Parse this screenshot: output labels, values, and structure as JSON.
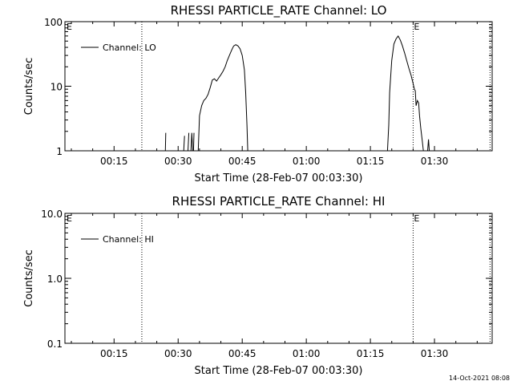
{
  "footer": {
    "timestamp": "14-Oct-2021 08:08"
  },
  "chart_data": [
    {
      "type": "line",
      "title": "RHESSI PARTICLE_RATE Channel: LO",
      "xlabel": "Start Time (28-Feb-07 00:03:30)",
      "ylabel": "Counts/sec",
      "xscale": "linear",
      "yscale": "log",
      "xunit": "minutes after 00:03:30",
      "xlim": [
        0,
        100
      ],
      "ylim": [
        1,
        100
      ],
      "xticks": [
        {
          "value": 11.5,
          "label": "00:15"
        },
        {
          "value": 26.5,
          "label": "00:30"
        },
        {
          "value": 41.5,
          "label": "00:45"
        },
        {
          "value": 56.5,
          "label": "01:00"
        },
        {
          "value": 71.5,
          "label": "01:15"
        },
        {
          "value": 86.5,
          "label": "01:30"
        }
      ],
      "yticks": [
        {
          "value": 1,
          "label": "1"
        },
        {
          "value": 10,
          "label": "10"
        },
        {
          "value": 100,
          "label": "100"
        }
      ],
      "legend": {
        "label": "Channel: LO",
        "position": "top-left"
      },
      "event_lines": [
        {
          "x": 18,
          "label": "",
          "label_x": 0
        },
        {
          "x": 81.5,
          "label": "E",
          "label_x": 81.5
        },
        {
          "x": 99.5,
          "label": "",
          "label_x": 0
        }
      ],
      "edge_markers": [
        {
          "label": "E",
          "position": "left"
        }
      ],
      "series": [
        {
          "name": "Channel: LO",
          "segments": [
            [
              [
                23.5,
                1.0
              ],
              [
                23.6,
                1.9
              ]
            ],
            [
              [
                27.8,
                1.0
              ],
              [
                28.0,
                1.7
              ]
            ],
            [
              [
                28.8,
                1.0
              ],
              [
                29.0,
                1.9
              ]
            ],
            [
              [
                29.5,
                1.0
              ],
              [
                29.7,
                1.9
              ],
              [
                29.9,
                1.0
              ]
            ],
            [
              [
                30.1,
                1.0
              ],
              [
                30.2,
                1.9
              ]
            ],
            [
              [
                31.2,
                1.0
              ],
              [
                31.5,
                3.5
              ],
              [
                32.0,
                5.0
              ],
              [
                32.5,
                6.0
              ],
              [
                33.0,
                6.5
              ],
              [
                33.5,
                7.5
              ],
              [
                34.0,
                9.5
              ],
              [
                34.5,
                12.5
              ],
              [
                35.0,
                13.0
              ],
              [
                35.5,
                12.0
              ],
              [
                36.0,
                13.5
              ],
              [
                36.5,
                15.0
              ],
              [
                37.0,
                17.0
              ],
              [
                37.5,
                20.0
              ],
              [
                38.0,
                25.0
              ],
              [
                38.5,
                30.0
              ],
              [
                39.0,
                36.0
              ],
              [
                39.5,
                42.0
              ],
              [
                40.0,
                44.0
              ],
              [
                40.5,
                42.0
              ],
              [
                41.0,
                38.0
              ],
              [
                41.5,
                30.0
              ],
              [
                42.0,
                18.0
              ],
              [
                42.3,
                8.0
              ],
              [
                42.6,
                2.5
              ],
              [
                42.8,
                1.0
              ]
            ],
            [
              [
                75.5,
                1.0
              ],
              [
                75.8,
                2.5
              ],
              [
                76.0,
                8.0
              ],
              [
                76.5,
                25.0
              ],
              [
                77.0,
                45.0
              ],
              [
                77.5,
                54.0
              ],
              [
                78.0,
                60.0
              ],
              [
                78.5,
                52.0
              ],
              [
                79.0,
                42.0
              ],
              [
                79.5,
                33.0
              ],
              [
                80.0,
                25.0
              ],
              [
                80.5,
                19.0
              ],
              [
                81.0,
                15.0
              ],
              [
                81.5,
                11.0
              ],
              [
                81.8,
                9.0
              ],
              [
                82.0,
                8.5
              ],
              [
                82.2,
                5.0
              ],
              [
                82.5,
                6.0
              ],
              [
                82.8,
                5.5
              ],
              [
                83.0,
                3.5
              ],
              [
                83.3,
                2.2
              ],
              [
                83.6,
                1.5
              ],
              [
                83.9,
                1.0
              ]
            ],
            [
              [
                84.9,
                1.0
              ],
              [
                85.1,
                1.5
              ],
              [
                85.3,
                1.0
              ]
            ]
          ]
        }
      ]
    },
    {
      "type": "line",
      "title": "RHESSI PARTICLE_RATE Channel: HI",
      "xlabel": "Start Time (28-Feb-07 00:03:30)",
      "ylabel": "Counts/sec",
      "xscale": "linear",
      "yscale": "log",
      "xunit": "minutes after 00:03:30",
      "xlim": [
        0,
        100
      ],
      "ylim": [
        0.1,
        10
      ],
      "xticks": [
        {
          "value": 11.5,
          "label": "00:15"
        },
        {
          "value": 26.5,
          "label": "00:30"
        },
        {
          "value": 41.5,
          "label": "00:45"
        },
        {
          "value": 56.5,
          "label": "01:00"
        },
        {
          "value": 71.5,
          "label": "01:15"
        },
        {
          "value": 86.5,
          "label": "01:30"
        }
      ],
      "yticks": [
        {
          "value": 0.1,
          "label": "0.1"
        },
        {
          "value": 1,
          "label": "1.0"
        },
        {
          "value": 10,
          "label": "10.0"
        }
      ],
      "legend": {
        "label": "Channel: HI",
        "position": "top-left"
      },
      "event_lines": [
        {
          "x": 18,
          "label": "",
          "label_x": 0
        },
        {
          "x": 81.5,
          "label": "E",
          "label_x": 81.5
        },
        {
          "x": 99.5,
          "label": "",
          "label_x": 0
        }
      ],
      "edge_markers": [
        {
          "label": "E",
          "position": "left"
        }
      ],
      "series": [
        {
          "name": "Channel: HI",
          "segments": []
        }
      ]
    }
  ]
}
